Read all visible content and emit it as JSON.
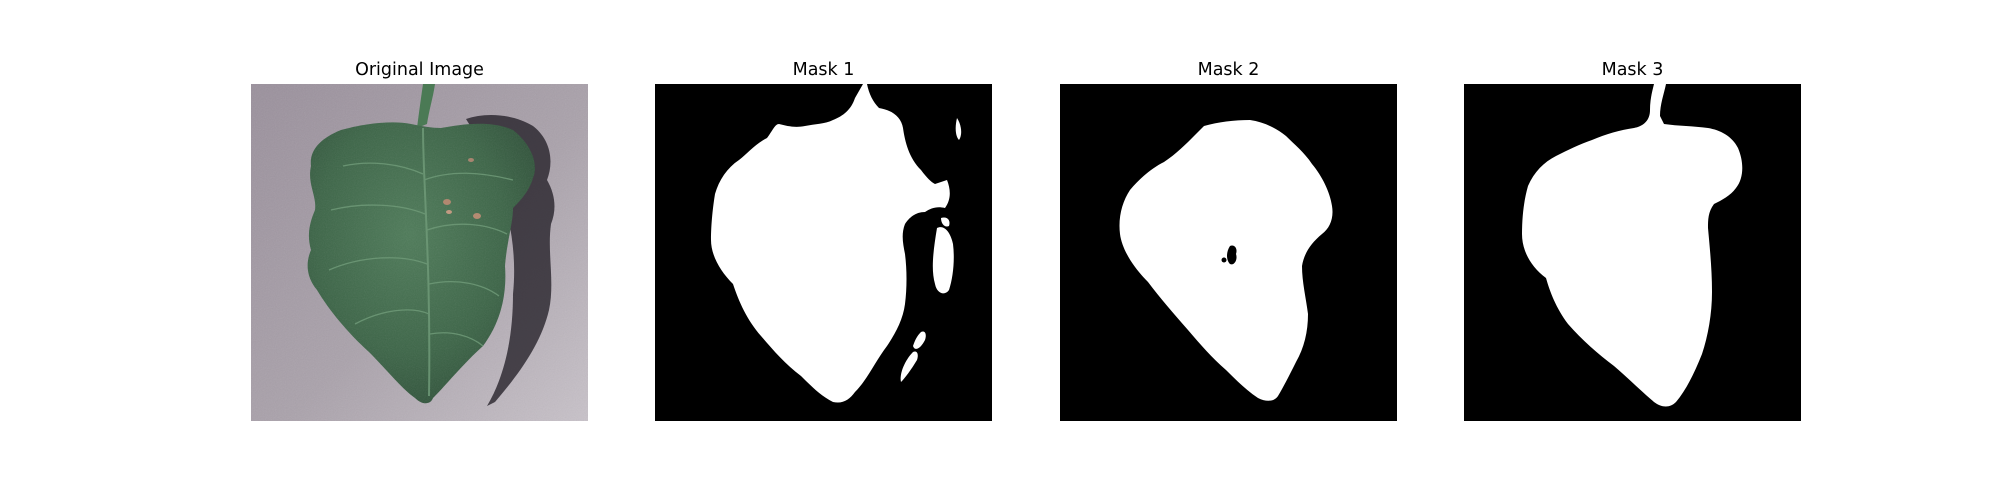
{
  "panels": [
    {
      "title": "Original Image"
    },
    {
      "title": "Mask 1"
    },
    {
      "title": "Mask 2"
    },
    {
      "title": "Mask 3"
    }
  ],
  "colors": {
    "background_gray": "#a69ea6",
    "leaf_green": "#3f6a4a",
    "leaf_dark": "#2a4a34",
    "mask_fg": "#ffffff",
    "mask_bg": "#000000"
  }
}
